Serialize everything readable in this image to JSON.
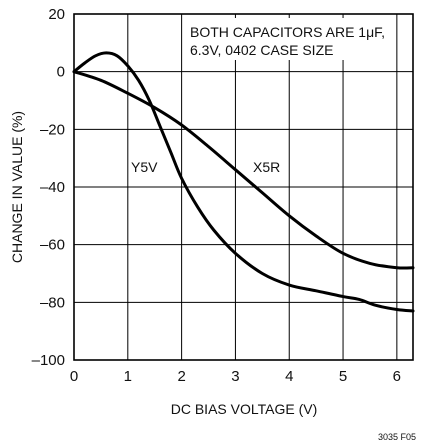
{
  "chart_data": {
    "type": "line",
    "xlabel": "DC BIAS VOLTAGE (V)",
    "ylabel": "CHANGE IN VALUE (%)",
    "xlim": [
      0,
      6.3
    ],
    "ylim": [
      -100,
      20
    ],
    "x_ticks": [
      "0",
      "1",
      "2",
      "3",
      "4",
      "5",
      "6"
    ],
    "y_ticks": [
      "20",
      "0",
      "–20",
      "–40",
      "–60",
      "–80",
      "–100"
    ],
    "grid": true,
    "annotation_lines": [
      "BOTH CAPACITORS ARE 1μF,",
      "6.3V, 0402 CASE SIZE"
    ],
    "figure_code": "3035 F05",
    "series": [
      {
        "name": "Y5V",
        "color": "#000000",
        "x": [
          0,
          0.2,
          0.4,
          0.6,
          0.8,
          1.0,
          1.2,
          1.4,
          1.6,
          1.8,
          2.0,
          2.3,
          2.6,
          3.0,
          3.5,
          4.0,
          4.5,
          5.0,
          5.3,
          5.6,
          6.0,
          6.3
        ],
        "y": [
          0,
          3,
          5.5,
          6.5,
          5.5,
          2,
          -3,
          -10,
          -19,
          -28,
          -37,
          -47,
          -55,
          -63,
          -70,
          -74,
          -76,
          -78,
          -79,
          -81,
          -82.5,
          -83
        ]
      },
      {
        "name": "X5R",
        "color": "#000000",
        "x": [
          0,
          0.5,
          1.0,
          1.5,
          2.0,
          2.5,
          3.0,
          3.5,
          4.0,
          4.5,
          5.0,
          5.5,
          6.0,
          6.3
        ],
        "y": [
          0,
          -3,
          -7.5,
          -12.5,
          -18.5,
          -26,
          -34,
          -42,
          -50,
          -57,
          -63,
          -66.5,
          -68,
          -68
        ]
      }
    ]
  }
}
